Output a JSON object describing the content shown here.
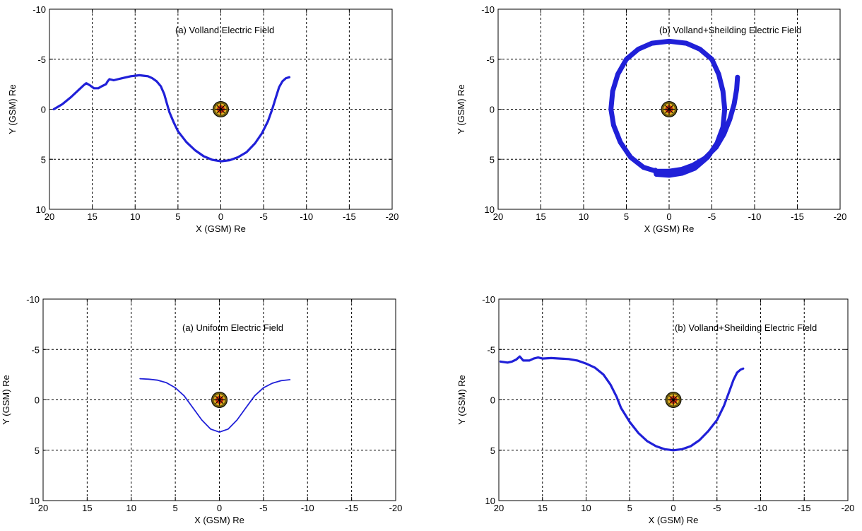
{
  "chart_data": [
    {
      "type": "line",
      "title": "(a) Volland Electric Field",
      "xlabel": "X (GSM) Re",
      "ylabel": "Y (GSM) Re",
      "xlim": [
        20,
        -20
      ],
      "ylim": [
        -10,
        10
      ],
      "x_reversed": true,
      "y_reversed": true,
      "grid": true,
      "xticks": [
        20,
        15,
        10,
        5,
        0,
        -5,
        -10,
        -15,
        -20
      ],
      "yticks": [
        -10,
        -5,
        0,
        5,
        10
      ],
      "line_color": "#2020d8",
      "marker": "earth",
      "series": [
        {
          "points": [
            [
              19.5,
              0.0
            ],
            [
              18.5,
              -0.5
            ],
            [
              17.5,
              -1.2
            ],
            [
              16.5,
              -2.0
            ],
            [
              16.0,
              -2.4
            ],
            [
              15.7,
              -2.6
            ],
            [
              15.3,
              -2.4
            ],
            [
              14.8,
              -2.1
            ],
            [
              14.3,
              -2.1
            ],
            [
              13.9,
              -2.3
            ],
            [
              13.4,
              -2.5
            ],
            [
              13.2,
              -2.8
            ],
            [
              13.0,
              -3.0
            ],
            [
              12.5,
              -2.9
            ],
            [
              12.0,
              -3.0
            ],
            [
              11.5,
              -3.1
            ],
            [
              11.0,
              -3.2
            ],
            [
              10.5,
              -3.3
            ],
            [
              10.0,
              -3.35
            ],
            [
              9.5,
              -3.4
            ],
            [
              9.0,
              -3.35
            ],
            [
              8.5,
              -3.3
            ],
            [
              8.0,
              -3.1
            ],
            [
              7.5,
              -2.8
            ],
            [
              7.0,
              -2.3
            ],
            [
              6.6,
              -1.5
            ],
            [
              6.3,
              -0.6
            ],
            [
              6.0,
              0.3
            ],
            [
              5.5,
              1.3
            ],
            [
              5.0,
              2.2
            ],
            [
              4.0,
              3.3
            ],
            [
              3.0,
              4.1
            ],
            [
              2.0,
              4.7
            ],
            [
              1.0,
              5.05
            ],
            [
              0.0,
              5.2
            ],
            [
              -1.0,
              5.1
            ],
            [
              -2.0,
              4.8
            ],
            [
              -3.0,
              4.3
            ],
            [
              -4.0,
              3.4
            ],
            [
              -4.8,
              2.4
            ],
            [
              -5.5,
              1.2
            ],
            [
              -6.0,
              0.0
            ],
            [
              -6.4,
              -1.1
            ],
            [
              -6.8,
              -2.2
            ],
            [
              -7.2,
              -2.8
            ],
            [
              -7.6,
              -3.1
            ],
            [
              -8.0,
              -3.2
            ]
          ]
        }
      ]
    },
    {
      "type": "line",
      "title": "(b) Volland+Sheilding Electric Field",
      "xlabel": "X (GSM) Re",
      "ylabel": "Y (GSM) Re",
      "xlim": [
        20,
        -20
      ],
      "ylim": [
        -10,
        10
      ],
      "x_reversed": true,
      "y_reversed": true,
      "grid": true,
      "xticks": [
        20,
        15,
        10,
        5,
        0,
        -5,
        -10,
        -15,
        -20
      ],
      "yticks": [
        -10,
        -5,
        0,
        5,
        10
      ],
      "line_color": "#2020d8",
      "marker": "earth",
      "series": [
        {
          "points": [
            [
              -8.0,
              -3.2
            ],
            [
              -7.9,
              -2.0
            ],
            [
              -7.6,
              -0.5
            ],
            [
              -7.1,
              1.0
            ],
            [
              -6.4,
              2.5
            ],
            [
              -5.5,
              3.8
            ],
            [
              -4.2,
              4.9
            ],
            [
              -2.8,
              5.6
            ],
            [
              -1.5,
              6.0
            ],
            [
              0.0,
              6.2
            ],
            [
              1.5,
              6.2
            ],
            [
              3.0,
              5.8
            ],
            [
              4.5,
              4.8
            ],
            [
              5.7,
              3.3
            ],
            [
              6.5,
              1.6
            ],
            [
              6.8,
              0.0
            ],
            [
              6.6,
              -1.8
            ],
            [
              6.0,
              -3.5
            ],
            [
              5.0,
              -5.0
            ],
            [
              3.6,
              -6.0
            ],
            [
              2.0,
              -6.6
            ],
            [
              0.0,
              -6.8
            ],
            [
              -2.0,
              -6.6
            ],
            [
              -3.6,
              -6.0
            ],
            [
              -5.0,
              -5.0
            ],
            [
              -5.8,
              -3.5
            ],
            [
              -6.3,
              -1.8
            ],
            [
              -6.5,
              0.0
            ],
            [
              -6.3,
              1.8
            ],
            [
              -5.6,
              3.4
            ],
            [
              -4.5,
              4.8
            ],
            [
              -3.0,
              5.9
            ],
            [
              -1.5,
              6.4
            ],
            [
              0.0,
              6.6
            ],
            [
              1.5,
              6.5
            ],
            [
              1.6,
              6.1
            ]
          ]
        }
      ]
    },
    {
      "type": "line",
      "title": "(a) Uniform Electric Field",
      "xlabel": "X (GSM) Re",
      "ylabel": "Y (GSM) Re",
      "xlim": [
        20,
        -20
      ],
      "ylim": [
        -10,
        10
      ],
      "x_reversed": true,
      "y_reversed": true,
      "grid": true,
      "xticks": [
        20,
        15,
        10,
        5,
        0,
        -5,
        -10,
        -15,
        -20
      ],
      "yticks": [
        -10,
        -5,
        0,
        5,
        10
      ],
      "line_color": "#2020d8",
      "marker": "earth",
      "series": [
        {
          "points": [
            [
              9.0,
              -2.1
            ],
            [
              8.0,
              -2.05
            ],
            [
              7.0,
              -1.95
            ],
            [
              6.0,
              -1.7
            ],
            [
              5.0,
              -1.2
            ],
            [
              4.0,
              -0.4
            ],
            [
              3.0,
              0.8
            ],
            [
              2.0,
              2.0
            ],
            [
              1.0,
              2.9
            ],
            [
              0.0,
              3.2
            ],
            [
              -1.0,
              2.9
            ],
            [
              -2.0,
              2.0
            ],
            [
              -3.0,
              0.8
            ],
            [
              -4.0,
              -0.4
            ],
            [
              -5.0,
              -1.2
            ],
            [
              -6.0,
              -1.65
            ],
            [
              -7.0,
              -1.9
            ],
            [
              -8.0,
              -2.0
            ]
          ]
        }
      ]
    },
    {
      "type": "line",
      "title": "(b) Volland+Sheilding Electric Field",
      "xlabel": "X (GSM) Re",
      "ylabel": "Y (GSM) Re",
      "xlim": [
        20,
        -20
      ],
      "ylim": [
        -10,
        10
      ],
      "x_reversed": true,
      "y_reversed": true,
      "grid": true,
      "xticks": [
        20,
        15,
        10,
        5,
        0,
        -5,
        -10,
        -15,
        -20
      ],
      "yticks": [
        -10,
        -5,
        0,
        5,
        10
      ],
      "line_color": "#2020d8",
      "marker": "earth",
      "series": [
        {
          "points": [
            [
              19.8,
              -3.8
            ],
            [
              19.0,
              -3.7
            ],
            [
              18.5,
              -3.8
            ],
            [
              18.0,
              -4.0
            ],
            [
              17.6,
              -4.3
            ],
            [
              17.2,
              -3.9
            ],
            [
              16.5,
              -3.9
            ],
            [
              16.0,
              -4.1
            ],
            [
              15.5,
              -4.2
            ],
            [
              15.0,
              -4.1
            ],
            [
              14.0,
              -4.15
            ],
            [
              13.0,
              -4.1
            ],
            [
              12.0,
              -4.05
            ],
            [
              11.0,
              -3.9
            ],
            [
              10.0,
              -3.6
            ],
            [
              9.0,
              -3.2
            ],
            [
              8.0,
              -2.5
            ],
            [
              7.2,
              -1.5
            ],
            [
              6.5,
              -0.3
            ],
            [
              6.0,
              0.8
            ],
            [
              5.0,
              2.2
            ],
            [
              4.0,
              3.3
            ],
            [
              3.0,
              4.1
            ],
            [
              2.0,
              4.6
            ],
            [
              1.0,
              4.9
            ],
            [
              0.0,
              5.0
            ],
            [
              -1.0,
              4.9
            ],
            [
              -2.0,
              4.6
            ],
            [
              -3.0,
              4.0
            ],
            [
              -4.0,
              3.1
            ],
            [
              -5.0,
              2.0
            ],
            [
              -5.8,
              0.6
            ],
            [
              -6.4,
              -0.8
            ],
            [
              -6.9,
              -2.0
            ],
            [
              -7.3,
              -2.7
            ],
            [
              -7.7,
              -3.0
            ],
            [
              -8.0,
              -3.1
            ]
          ]
        }
      ]
    }
  ]
}
